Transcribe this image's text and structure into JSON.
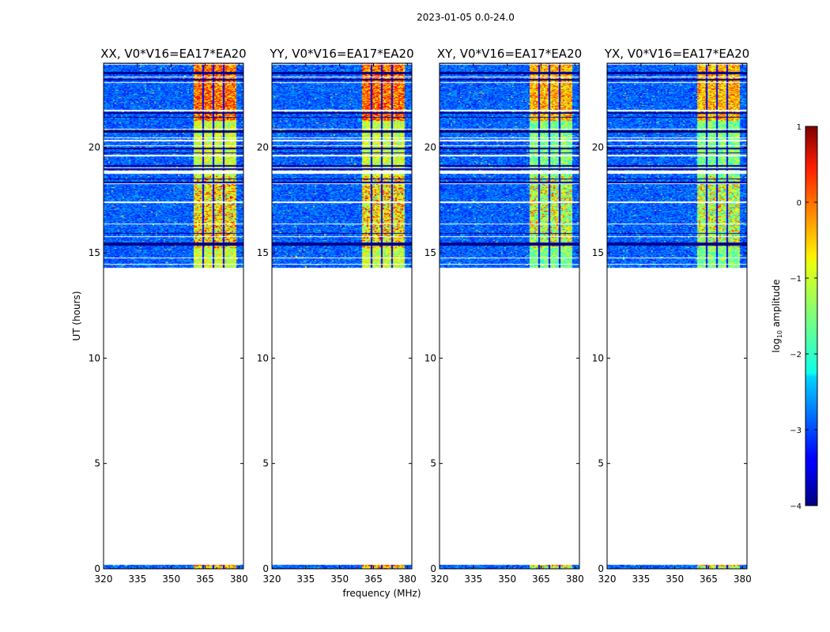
{
  "figure_title": "2023-01-05 0.0-24.0",
  "chart_data": {
    "type": "heatmap",
    "title": "2023-01-05 0.0-24.0",
    "xlabel": "frequency (MHz)",
    "ylabel": "UT (hours)",
    "xlim": [
      320,
      382
    ],
    "ylim": [
      0,
      24
    ],
    "xticks": [
      320,
      335,
      350,
      365,
      380
    ],
    "yticks": [
      0,
      5,
      10,
      15,
      20
    ],
    "data_time_ranges_hours": [
      [
        14.3,
        24.0
      ],
      [
        0.0,
        0.2
      ]
    ],
    "high_amplitude_band_mhz": [
      359.5,
      378.5
    ],
    "panels": [
      {
        "title": "XX, V0*V16=EA17*EA20",
        "polarization": "XX"
      },
      {
        "title": "YY, V0*V16=EA17*EA20",
        "polarization": "YY"
      },
      {
        "title": "XY, V0*V16=EA17*EA20",
        "polarization": "XY"
      },
      {
        "title": "YX, V0*V16=EA17*EA20",
        "polarization": "YX"
      }
    ],
    "colorbar": {
      "label": "log10 amplitude",
      "label_base": "log",
      "label_sub": "10",
      "label_rest": " amplitude",
      "range": [
        -4,
        1
      ],
      "ticks": [
        1,
        0,
        -1,
        -2,
        -3,
        -4
      ],
      "tick_labels": [
        "1",
        "0",
        "−1",
        "−2",
        "−3",
        "−4"
      ],
      "colormap": "jet"
    }
  }
}
